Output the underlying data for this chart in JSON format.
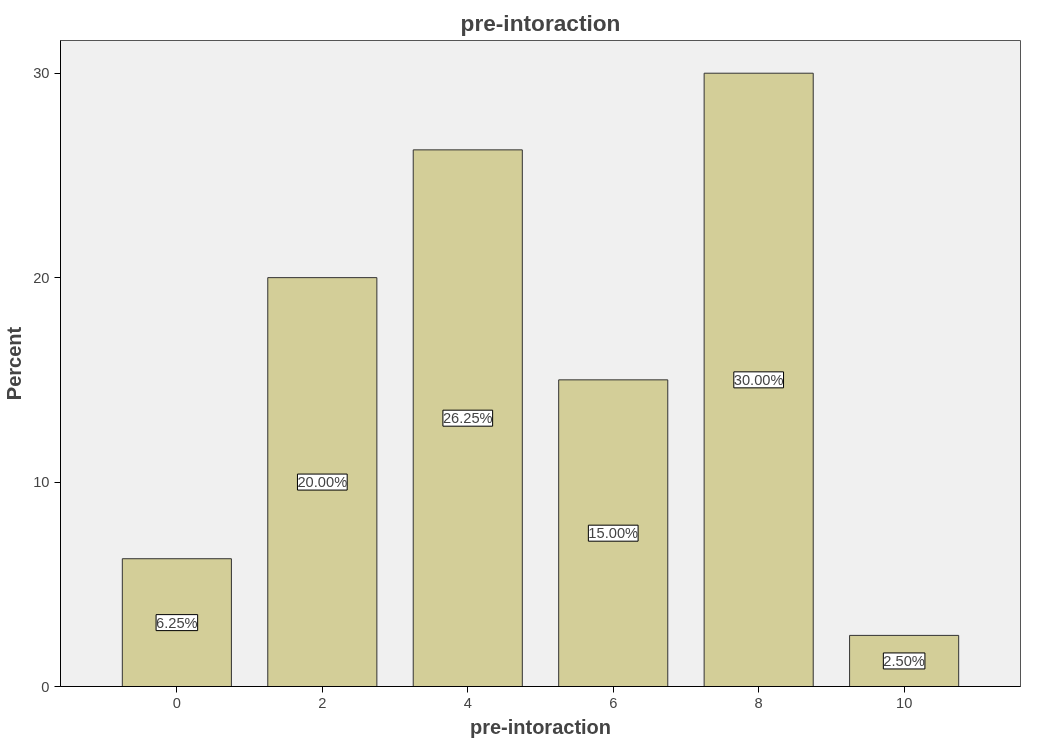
{
  "chart_data": {
    "type": "bar",
    "title": "pre-intoraction",
    "xlabel": "pre-intoraction",
    "ylabel": "Percent",
    "categories": [
      "0",
      "2",
      "4",
      "6",
      "8",
      "10"
    ],
    "values": [
      6.25,
      20.0,
      26.25,
      15.0,
      30.0,
      2.5
    ],
    "value_labels": [
      "6.25%",
      "20.00%",
      "26.25%",
      "15.00%",
      "30.00%",
      "2.50%"
    ],
    "color": "#d3ce98",
    "ylim": [
      0,
      31.6
    ],
    "yticks": [
      0,
      10,
      20,
      30
    ],
    "grid": false
  }
}
